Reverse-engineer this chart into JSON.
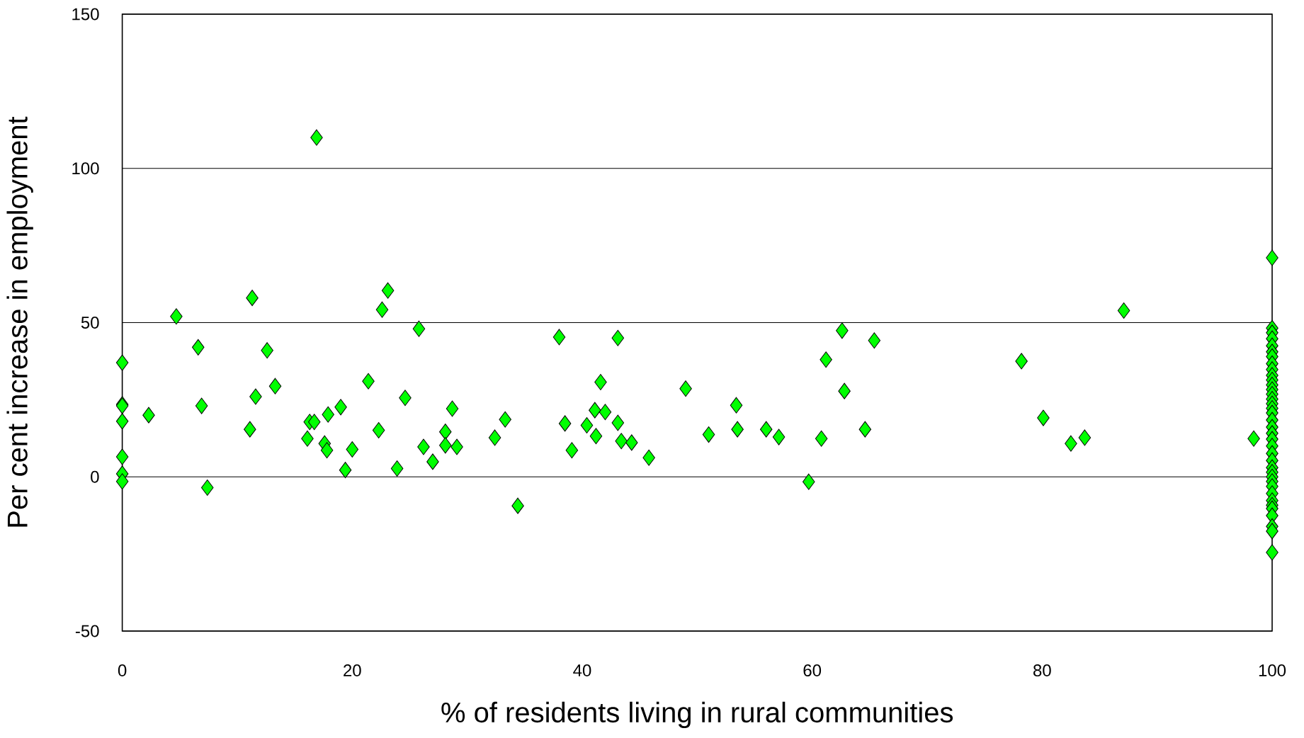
{
  "chart_data": {
    "type": "scatter",
    "xlabel": "% of residents living in rural communities",
    "ylabel": "Per cent increase in employment",
    "xlim": [
      0,
      100
    ],
    "ylim": [
      -50,
      150
    ],
    "xticks": [
      0,
      20,
      40,
      60,
      80,
      100
    ],
    "yticks": [
      -50,
      0,
      50,
      100,
      150
    ],
    "grid": "y",
    "marker": "diamond",
    "series": [
      {
        "color": "#00ff00",
        "x": [
          0,
          0,
          0,
          0,
          0,
          0,
          0,
          2.3,
          4.7,
          6.6,
          6.9,
          7.4,
          11.3,
          11.1,
          11.6,
          12.6,
          13.3,
          16.9,
          16.1,
          16.3,
          16.7,
          17.6,
          17.8,
          17.9,
          19.0,
          19.4,
          20.0,
          21.4,
          22.3,
          22.6,
          23.1,
          23.9,
          24.6,
          25.8,
          26.2,
          27.0,
          28.1,
          28.1,
          28.7,
          29.1,
          32.4,
          33.3,
          34.4,
          38.0,
          38.5,
          39.1,
          40.4,
          41.1,
          41.2,
          41.6,
          42.0,
          43.1,
          43.1,
          43.4,
          44.3,
          45.8,
          49.0,
          51.0,
          53.4,
          53.5,
          56.0,
          57.1,
          59.7,
          60.8,
          61.2,
          62.6,
          62.8,
          64.6,
          65.4,
          78.2,
          80.1,
          82.5,
          83.7,
          87.1,
          98.4,
          100,
          100,
          100,
          100,
          100,
          100,
          100,
          100,
          100,
          100,
          100,
          100,
          100,
          100,
          100,
          100,
          100,
          100,
          100,
          100,
          100,
          100,
          100,
          100,
          100,
          100,
          100,
          100,
          100,
          100,
          100,
          100,
          100,
          100,
          100,
          100,
          100,
          100
        ],
        "values": [
          37,
          23.5,
          23,
          18,
          6.5,
          1,
          -1.5,
          20,
          52,
          42,
          23,
          -3.5,
          58,
          15.4,
          26,
          41,
          29.4,
          110,
          12.4,
          17.8,
          17.8,
          10.8,
          8.6,
          20.2,
          22.6,
          2.2,
          8.9,
          31,
          15.1,
          54.2,
          60.4,
          2.7,
          25.6,
          48,
          9.7,
          4.9,
          14.6,
          10.2,
          22.1,
          9.7,
          12.7,
          18.6,
          -9.4,
          45.3,
          17.3,
          8.6,
          16.7,
          21.6,
          13.2,
          30.7,
          21,
          45,
          17.5,
          11.6,
          11.1,
          6.2,
          28.6,
          13.7,
          23.2,
          15.4,
          15.4,
          12.9,
          -1.6,
          12.4,
          38,
          47.4,
          27.8,
          15.4,
          44.2,
          37.5,
          19.1,
          10.8,
          12.7,
          53.9,
          12.4,
          71,
          48.2,
          46.7,
          44.8,
          42.5,
          40.5,
          39.0,
          36.7,
          34.8,
          32.9,
          31.4,
          29.8,
          28.3,
          26.8,
          25.2,
          23.7,
          22.2,
          20.7,
          18.4,
          16.1,
          14.1,
          12.2,
          10.0,
          7.6,
          5.3,
          3.0,
          1.5,
          0.0,
          -1.5,
          -3.1,
          -5.4,
          -7.7,
          -9.2,
          -10.3,
          -12.6,
          -16.1,
          -17.6,
          -24.5
        ]
      }
    ]
  }
}
